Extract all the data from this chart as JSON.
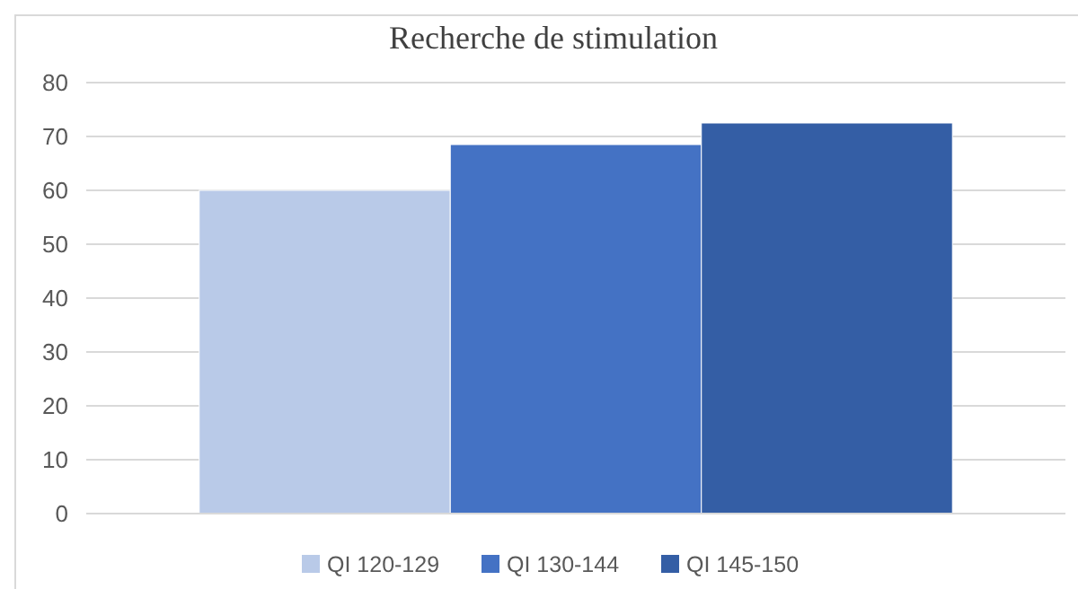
{
  "chart_data": {
    "type": "bar",
    "title": "Recherche de stimulation",
    "categories": [
      null
    ],
    "series": [
      {
        "name": "QI 120-129",
        "color": "#b9cae8",
        "values": [
          60
        ]
      },
      {
        "name": "QI 130-144",
        "color": "#4472c4",
        "values": [
          68.5
        ]
      },
      {
        "name": "QI 145-150",
        "color": "#345ea5",
        "values": [
          72.5
        ]
      }
    ],
    "ylim": [
      0,
      80
    ],
    "yticks": [
      0,
      10,
      20,
      30,
      40,
      50,
      60,
      70,
      80
    ],
    "grid": "y",
    "legend": "bottom"
  }
}
